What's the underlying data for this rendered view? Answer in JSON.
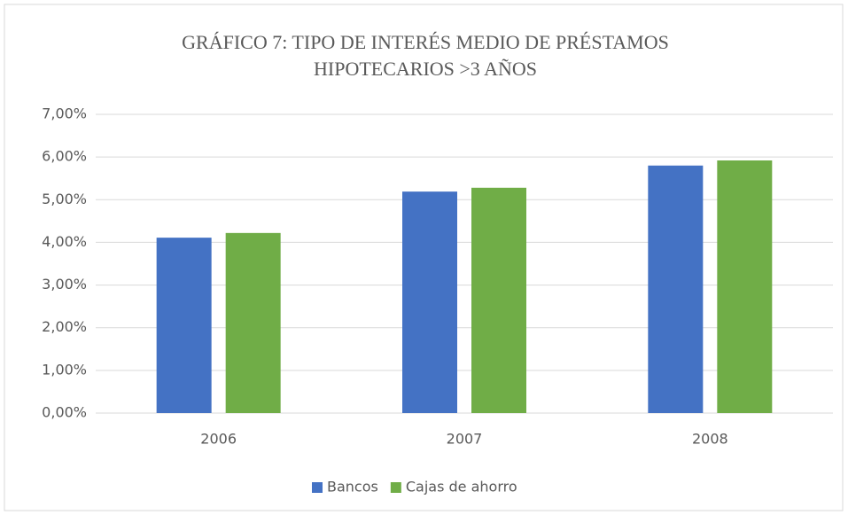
{
  "chart_data": {
    "type": "bar",
    "title": [
      "GRÁFICO 7: TIPO DE INTERÉS MEDIO DE PRÉSTAMOS",
      "HIPOTECARIOS >3 AÑOS"
    ],
    "categories": [
      "2006",
      "2007",
      "2008"
    ],
    "series": [
      {
        "name": "Bancos",
        "color": "#4472c4",
        "values": [
          4.11,
          5.19,
          5.8
        ]
      },
      {
        "name": "Cajas de ahorro",
        "color": "#70ad47",
        "values": [
          4.22,
          5.28,
          5.92
        ]
      }
    ],
    "ylim": [
      0,
      7
    ],
    "yticks": [
      {
        "value": 0,
        "label": "0,00%"
      },
      {
        "value": 1,
        "label": "1,00%"
      },
      {
        "value": 2,
        "label": "2,00%"
      },
      {
        "value": 3,
        "label": "3,00%"
      },
      {
        "value": 4,
        "label": "4,00%"
      },
      {
        "value": 5,
        "label": "5,00%"
      },
      {
        "value": 6,
        "label": "6,00%"
      },
      {
        "value": 7,
        "label": "7,00%"
      }
    ],
    "grid": true,
    "legend": "bottom"
  }
}
